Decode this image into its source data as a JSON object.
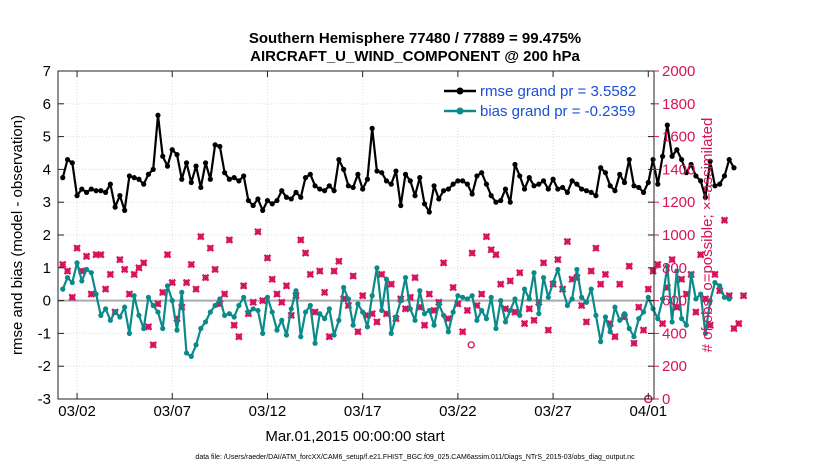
{
  "chart_data": {
    "type": "line",
    "title": "Southern Hemisphere 77480 / 77889 = 99.475%",
    "subtitle": "AIRCRAFT_U_WIND_COMPONENT @ 200 hPa",
    "xlabel": "Mar.01,2015 00:00:00 start",
    "ylabel": "rmse and bias (model - observation)",
    "y2label": "# of obs: o=possible; ×=assimilated",
    "x_tick_labels": [
      "03/02",
      "03/07",
      "03/12",
      "03/17",
      "03/22",
      "03/27",
      "04/01"
    ],
    "x_tick_days": [
      1,
      6,
      11,
      16,
      21,
      26,
      31
    ],
    "xlim_days": [
      0,
      31.3
    ],
    "ylim": [
      -3,
      7
    ],
    "y_ticks": [
      "-3",
      "-2",
      "-1",
      "0",
      "1",
      "2",
      "3",
      "4",
      "5",
      "6",
      "7"
    ],
    "y2lim": [
      0,
      2000
    ],
    "y2_ticks": [
      "0",
      "200",
      "400",
      "600",
      "800",
      "1000",
      "1200",
      "1400",
      "1600",
      "1800",
      "2000"
    ],
    "grid": true,
    "legend_position": "top-right",
    "series": [
      {
        "name": "rmse grand pr = 3.5582",
        "axis": "left",
        "color": "#000000",
        "values": [
          3.75,
          4.3,
          4.2,
          3.2,
          3.4,
          3.3,
          3.4,
          3.35,
          3.35,
          3.3,
          3.55,
          2.85,
          3.2,
          2.75,
          3.8,
          3.75,
          3.7,
          3.55,
          3.85,
          4.0,
          5.65,
          4.4,
          4.1,
          4.6,
          4.45,
          3.7,
          4.2,
          3.6,
          4.1,
          3.45,
          4.2,
          3.7,
          4.75,
          4.7,
          3.9,
          3.7,
          3.75,
          3.65,
          3.8,
          3.05,
          2.9,
          3.1,
          2.75,
          3.05,
          2.95,
          3.05,
          3.35,
          3.15,
          3.1,
          3.3,
          3.15,
          3.75,
          3.85,
          3.5,
          3.4,
          3.35,
          3.5,
          3.35,
          4.3,
          4.0,
          3.5,
          3.45,
          3.85,
          3.4,
          3.7,
          5.25,
          3.95,
          3.9,
          3.65,
          3.55,
          3.95,
          2.9,
          3.85,
          3.65,
          3.2,
          3.75,
          2.95,
          2.7,
          3.5,
          3.1,
          3.35,
          3.4,
          3.55,
          3.65,
          3.65,
          3.55,
          3.25,
          3.8,
          3.9,
          3.55,
          3.2,
          3.0,
          3.05,
          3.4,
          3.0,
          4.15,
          3.8,
          3.4,
          3.75,
          3.5,
          3.55,
          3.65,
          3.4,
          3.7,
          3.4,
          3.45,
          3.3,
          3.65,
          3.55,
          3.4,
          3.35,
          3.3,
          3.2,
          4.05,
          3.9,
          3.5,
          3.35,
          3.85,
          3.6,
          4.3,
          3.5,
          3.45,
          3.3,
          3.6,
          4.3,
          3.55,
          4.4,
          5.35,
          4.4,
          4.6,
          4.3,
          3.9,
          4.15,
          3.8,
          3.65,
          3.15,
          4.25,
          3.5,
          3.55,
          3.8,
          4.3,
          4.05
        ]
      },
      {
        "name": "bias grand pr = -0.2359",
        "axis": "left",
        "color": "#0b8a8a",
        "values": [
          0.35,
          0.7,
          0.55,
          1.15,
          0.6,
          0.95,
          0.85,
          0.2,
          -0.45,
          -0.25,
          -0.6,
          -0.35,
          -0.5,
          -0.2,
          -1.0,
          0.15,
          -0.45,
          -0.85,
          0.1,
          -0.15,
          -0.35,
          -0.85,
          0.45,
          0.0,
          -0.9,
          0.25,
          -1.6,
          -1.7,
          -1.35,
          -0.85,
          -0.65,
          -0.35,
          -0.15,
          0.05,
          -0.45,
          -0.4,
          -0.5,
          -0.15,
          0.1,
          -0.35,
          -0.25,
          -0.3,
          -1.0,
          0.1,
          -0.35,
          -0.9,
          -0.6,
          -1.05,
          -0.25,
          0.3,
          -1.1,
          -0.35,
          -0.15,
          -1.3,
          -0.4,
          -0.55,
          -0.25,
          -1.05,
          -0.6,
          0.4,
          0.05,
          -0.75,
          -0.1,
          -0.35,
          -0.8,
          0.15,
          1.0,
          -0.3,
          0.65,
          -1.0,
          -0.5,
          0.0,
          0.7,
          -0.25,
          -0.6,
          0.3,
          -0.4,
          -0.3,
          -0.75,
          -0.1,
          -0.45,
          -0.95,
          -0.35,
          0.15,
          0.1,
          0.05,
          0.15,
          -0.6,
          -0.3,
          -0.55,
          0.1,
          -0.85,
          0.0,
          -0.65,
          -0.3,
          0.05,
          -0.45,
          0.35,
          0.05,
          0.85,
          -0.4,
          0.7,
          0.1,
          0.55,
          0.95,
          0.35,
          -0.15,
          0.05,
          0.95,
          0.1,
          -0.05,
          0.35,
          -0.45,
          -1.25,
          -0.5,
          -0.95,
          -0.2,
          -0.6,
          -0.4,
          -0.85,
          -1.1,
          -0.55,
          -0.35,
          0.1,
          -0.25,
          -0.55,
          0.05,
          1.05,
          -0.65,
          0.9,
          -0.55,
          -0.75,
          0.8,
          0.05,
          0.2,
          -1.0,
          0.0,
          0.55,
          0.45,
          0.1,
          0.05
        ]
      },
      {
        "name": "# of obs assimilated",
        "axis": "right",
        "color": "#d6135c",
        "values": [
          820,
          780,
          620,
          920,
          780,
          870,
          640,
          880,
          880,
          670,
          760,
          530,
          850,
          790,
          640,
          760,
          800,
          830,
          440,
          330,
          580,
          650,
          880,
          710,
          490,
          560,
          710,
          820,
          670,
          990,
          740,
          920,
          790,
          580,
          640,
          970,
          450,
          380,
          690,
          520,
          590,
          1020,
          600,
          860,
          730,
          640,
          590,
          690,
          510,
          630,
          970,
          890,
          760,
          530,
          780,
          650,
          380,
          780,
          840,
          610,
          570,
          750,
          410,
          630,
          510,
          520,
          470,
          760,
          520,
          700,
          490,
          610,
          550,
          620,
          740,
          560,
          450,
          640,
          540,
          590,
          830,
          490,
          680,
          580,
          410,
          540,
          890,
          570,
          640,
          990,
          910,
          880,
          700,
          550,
          720,
          530,
          770,
          460,
          550,
          480,
          590,
          830,
          420,
          700,
          850,
          670,
          960,
          730,
          740,
          570,
          470,
          780,
          920,
          700,
          760,
          460,
          380,
          700,
          500,
          810,
          340,
          560,
          420,
          670,
          780,
          820,
          460,
          680,
          850,
          560,
          730,
          640,
          760,
          530,
          880,
          610,
          450,
          760,
          660,
          1090,
          630,
          430,
          460,
          630
        ]
      }
    ],
    "possible_minimum_point": {
      "day": 31.0,
      "value": 0
    },
    "scattered_markers": [
      [
        21.7,
        330
      ]
    ]
  },
  "footnote": "data file: /Users/raeder/DAI/ATM_forcXX/CAM6_setup/f.e21.FHIST_BGC.f09_025.CAM6assim.011/Diags_NTrS_2015-03/obs_diag_output.nc"
}
